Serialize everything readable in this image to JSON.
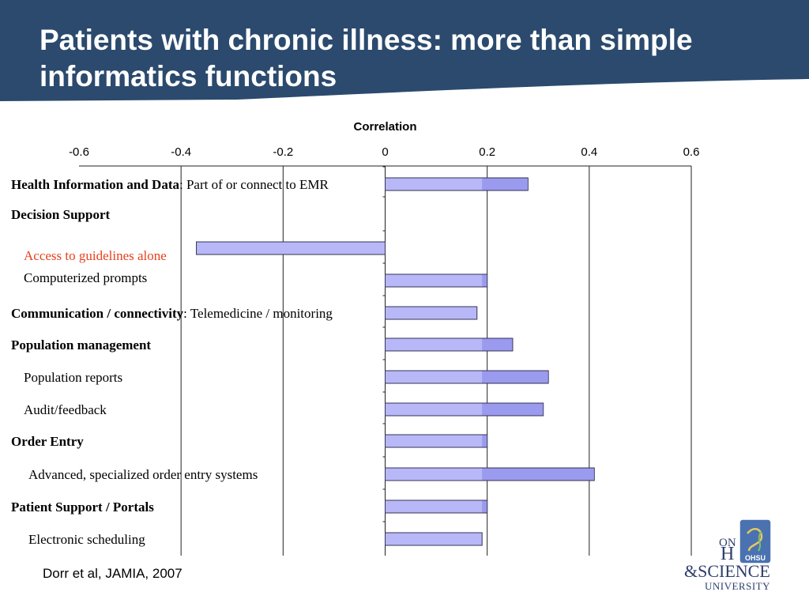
{
  "slide": {
    "title": "Patients with chronic illness: more than simple informatics functions",
    "citation": "Dorr et al, JAMIA, 2007"
  },
  "colors": {
    "header_bg": "#2b4a6e",
    "bar_fill_light": "#b8b8f8",
    "bar_fill_dark": "#9a9aee",
    "bar_stroke": "#333355",
    "highlight_text": "#e8401c",
    "logo_text": "#2f3e6e",
    "logo_badge": "#4a72b0"
  },
  "logo": {
    "lines": [
      "ON",
      "H",
      "&SCIENCE",
      "UNIVERSITY"
    ],
    "badge_text": "OHSU",
    "icon": "ohsu-shield-icon"
  },
  "chart_data": {
    "type": "bar",
    "orientation": "horizontal",
    "title": "",
    "xlabel": "Correlation",
    "xlim": [
      -0.6,
      0.6
    ],
    "xticks": [
      "-0.6",
      "-0.4",
      "-0.2",
      "0",
      "0.2",
      "0.4",
      "0.6"
    ],
    "grid": "vertical gridlines at each tick",
    "categories": [
      {
        "bold": "Health Information and Data",
        "rest": ": Part of or connect to EMR",
        "value": 0.28
      },
      {
        "bold": "Decision Support",
        "rest": "",
        "value": null
      },
      {
        "bold": "",
        "rest": "Access to guidelines alone",
        "value": -0.37,
        "highlight": true
      },
      {
        "bold": "",
        "rest": "Computerized prompts",
        "value": 0.2
      },
      {
        "bold": "Communication / connectivity",
        "rest": ": Telemedicine / monitoring",
        "value": 0.18
      },
      {
        "bold": "Population management",
        "rest": "",
        "value": 0.25
      },
      {
        "bold": "",
        "rest": "Population reports",
        "value": 0.32
      },
      {
        "bold": "",
        "rest": "Audit/feedback",
        "value": 0.31
      },
      {
        "bold": "Order Entry",
        "rest": "",
        "value": 0.2
      },
      {
        "bold": "",
        "rest": "Advanced, specialized order entry systems",
        "value": 0.41
      },
      {
        "bold": "Patient Support / Portals",
        "rest": "",
        "value": 0.2
      },
      {
        "bold": "",
        "rest": "Electronic scheduling",
        "value": 0.19
      }
    ]
  }
}
